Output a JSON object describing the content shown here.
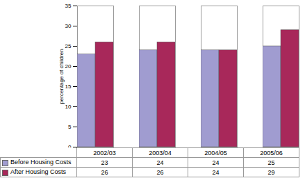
{
  "chart_data": {
    "type": "bar",
    "y_label": "percentage of children",
    "categories": [
      "2002/03",
      "2003/04",
      "2004/05",
      "2005/06"
    ],
    "series": [
      {
        "name": "Before Housing Costs",
        "color": "#a09cd0",
        "values": [
          23,
          24,
          24,
          25
        ]
      },
      {
        "name": "After Housing Costs",
        "color": "#a8285a",
        "values": [
          26,
          26,
          24,
          29
        ]
      }
    ],
    "ylim": [
      0,
      35
    ],
    "yticks": [
      0,
      5,
      10,
      15,
      20,
      25,
      30,
      35
    ],
    "grid": false
  }
}
